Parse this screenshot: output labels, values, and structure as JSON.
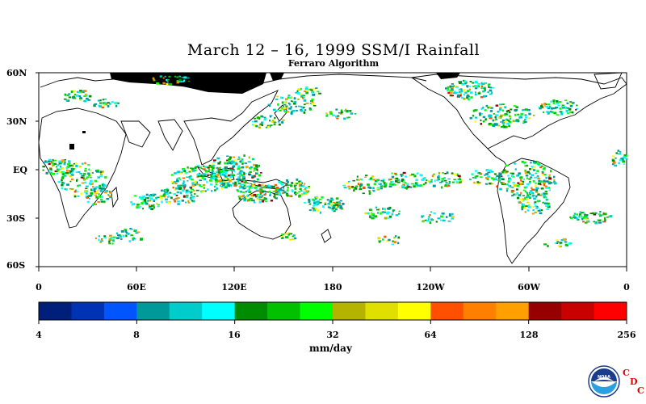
{
  "title": "March 12 – 16, 1999 SSM/I Rainfall",
  "subtitle": "Ferraro Algorithm",
  "lat_labels": [
    "60N",
    "30N",
    "EQ",
    "30S",
    "60S"
  ],
  "lon_labels": [
    "0",
    "60E",
    "120E",
    "180",
    "120W",
    "60W",
    "0"
  ],
  "colorbar": {
    "colors": [
      "#001f7a",
      "#0032b4",
      "#0055ff",
      "#009999",
      "#00cccc",
      "#00ffff",
      "#008c00",
      "#00c000",
      "#00ff00",
      "#b4b400",
      "#e0e000",
      "#ffff00",
      "#ff5000",
      "#ff7f00",
      "#ffa000",
      "#960000",
      "#c80000",
      "#ff0000"
    ],
    "tick_labels": [
      "4",
      "8",
      "16",
      "32",
      "64",
      "128",
      "256"
    ],
    "units": "mm/day"
  },
  "logo": {
    "name": "NOAA",
    "letters": [
      "C",
      "D",
      "C"
    ],
    "color": "#e00000"
  },
  "map": {
    "projection": "equirectangular",
    "lat_range": [
      "60S",
      "60N"
    ],
    "lon_range": [
      "0",
      "360"
    ],
    "background": "#ffffff",
    "missing_data_color": "#000000"
  }
}
